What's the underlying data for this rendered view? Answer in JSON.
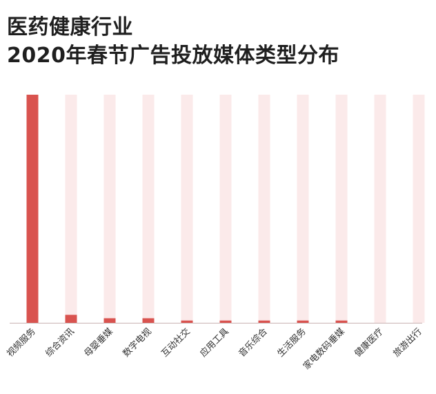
{
  "title_line1": "医药健康行业",
  "title_line2": "2020年春节广告投放媒体类型分布",
  "colors": {
    "bar": "#d9534f",
    "track": "#fbeaea",
    "axis": "#c9b3b3"
  },
  "chart_data": {
    "type": "bar",
    "title": "医药健康行业 2020年春节广告投放媒体类型分布",
    "categories": [
      "视频服务",
      "综合资讯",
      "母婴垂媒",
      "数字电视",
      "互动社交",
      "应用工具",
      "音乐综合",
      "生活服务",
      "家电数码垂媒",
      "健康医疗",
      "旅游出行"
    ],
    "values": [
      100,
      3.5,
      2,
      2,
      1,
      1,
      1,
      1,
      1,
      0,
      0
    ],
    "ylim": [
      0,
      100
    ],
    "grid": false,
    "legend": "none",
    "xlabel": "",
    "ylabel": ""
  }
}
